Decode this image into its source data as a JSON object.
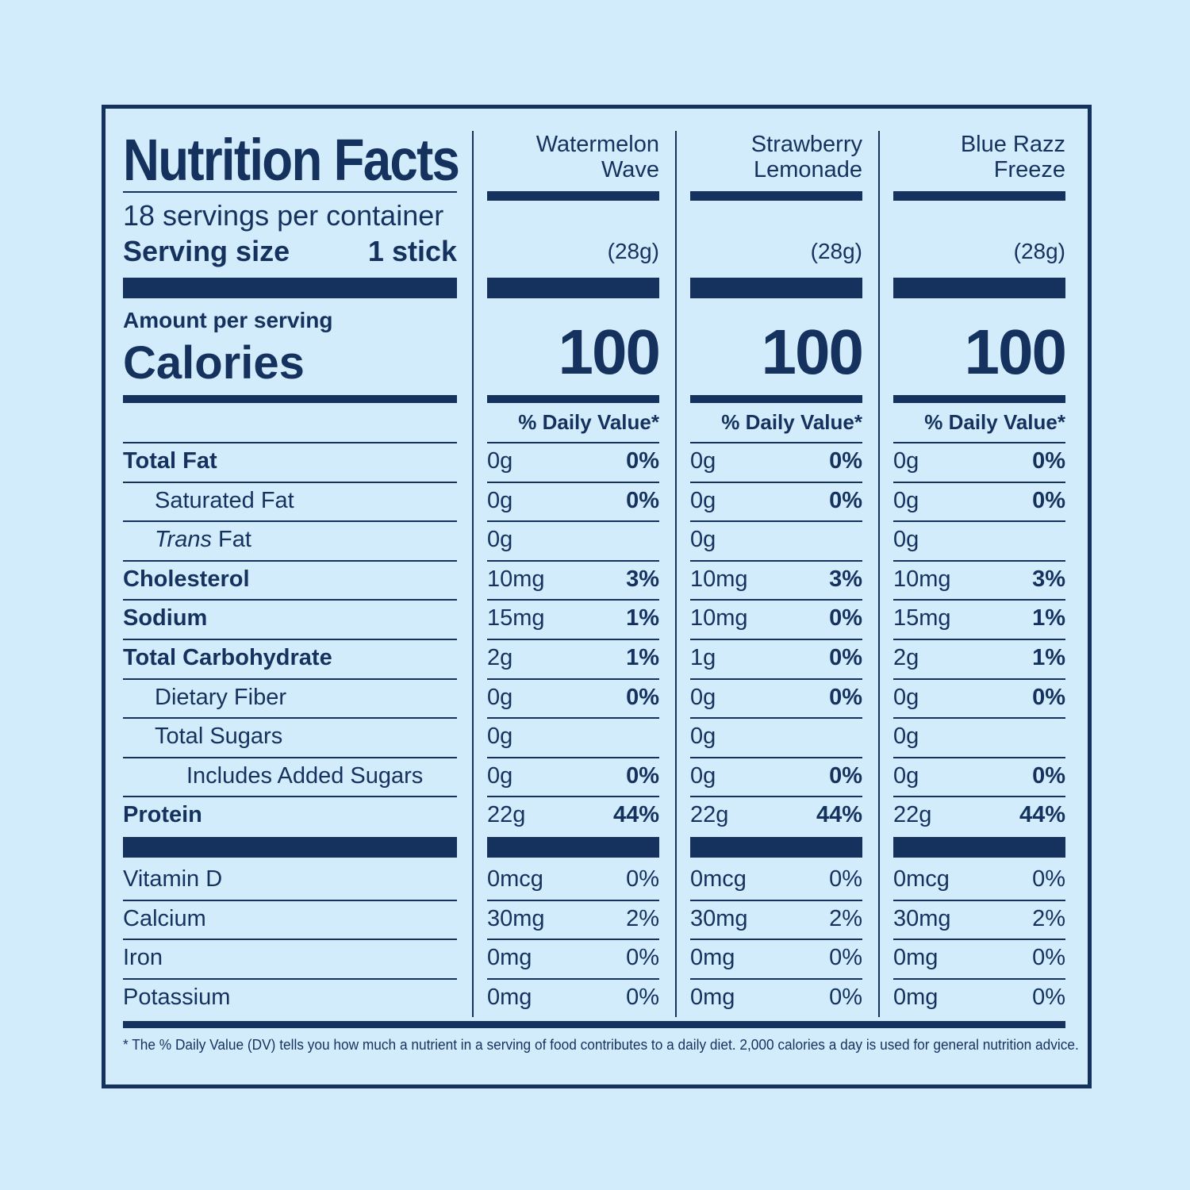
{
  "label": {
    "title": "Nutrition Facts",
    "servings_per_container": "18 servings per container",
    "serving_size_label": "Serving size",
    "serving_size_value": "1 stick",
    "amount_per_serving": "Amount per serving",
    "calories_label": "Calories",
    "daily_value_header": "% Daily Value*",
    "footnote": "* The % Daily Value (DV) tells you how much a nutrient in a serving of food contributes to a daily diet. 2,000 calories a day is used for general nutrition advice."
  },
  "flavors": [
    {
      "name": "Watermelon\nWave",
      "weight": "(28g)",
      "calories": "100",
      "dv_header": "% Daily Value*",
      "rows": [
        {
          "amt": "0g",
          "dv": "0%"
        },
        {
          "amt": "0g",
          "dv": "0%"
        },
        {
          "amt": "0g",
          "dv": ""
        },
        {
          "amt": "10mg",
          "dv": "3%"
        },
        {
          "amt": "15mg",
          "dv": "1%"
        },
        {
          "amt": "2g",
          "dv": "1%"
        },
        {
          "amt": "0g",
          "dv": "0%"
        },
        {
          "amt": "0g",
          "dv": ""
        },
        {
          "amt": "0g",
          "dv": "0%"
        },
        {
          "amt": "22g",
          "dv": "44%"
        }
      ],
      "vitamins": [
        {
          "amt": "0mcg",
          "dv": "0%"
        },
        {
          "amt": "30mg",
          "dv": "2%"
        },
        {
          "amt": "0mg",
          "dv": "0%"
        },
        {
          "amt": "0mg",
          "dv": "0%"
        }
      ]
    },
    {
      "name": "Strawberry\nLemonade",
      "weight": "(28g)",
      "calories": "100",
      "dv_header": "% Daily Value*",
      "rows": [
        {
          "amt": "0g",
          "dv": "0%"
        },
        {
          "amt": "0g",
          "dv": "0%"
        },
        {
          "amt": "0g",
          "dv": ""
        },
        {
          "amt": "10mg",
          "dv": "3%"
        },
        {
          "amt": "10mg",
          "dv": "0%"
        },
        {
          "amt": "1g",
          "dv": "0%"
        },
        {
          "amt": "0g",
          "dv": "0%"
        },
        {
          "amt": "0g",
          "dv": ""
        },
        {
          "amt": "0g",
          "dv": "0%"
        },
        {
          "amt": "22g",
          "dv": "44%"
        }
      ],
      "vitamins": [
        {
          "amt": "0mcg",
          "dv": "0%"
        },
        {
          "amt": "30mg",
          "dv": "2%"
        },
        {
          "amt": "0mg",
          "dv": "0%"
        },
        {
          "amt": "0mg",
          "dv": "0%"
        }
      ]
    },
    {
      "name": "Blue Razz\nFreeze",
      "weight": "(28g)",
      "calories": "100",
      "dv_header": "% Daily Value*",
      "rows": [
        {
          "amt": "0g",
          "dv": "0%"
        },
        {
          "amt": "0g",
          "dv": "0%"
        },
        {
          "amt": "0g",
          "dv": ""
        },
        {
          "amt": "10mg",
          "dv": "3%"
        },
        {
          "amt": "15mg",
          "dv": "1%"
        },
        {
          "amt": "2g",
          "dv": "1%"
        },
        {
          "amt": "0g",
          "dv": "0%"
        },
        {
          "amt": "0g",
          "dv": ""
        },
        {
          "amt": "0g",
          "dv": "0%"
        },
        {
          "amt": "22g",
          "dv": "44%"
        }
      ],
      "vitamins": [
        {
          "amt": "0mcg",
          "dv": "0%"
        },
        {
          "amt": "30mg",
          "dv": "2%"
        },
        {
          "amt": "0mg",
          "dv": "0%"
        },
        {
          "amt": "0mg",
          "dv": "0%"
        }
      ]
    }
  ],
  "nutrients": [
    {
      "label": "Total Fat",
      "bold": true,
      "indent": 0
    },
    {
      "label": "Saturated Fat",
      "bold": false,
      "indent": 1
    },
    {
      "label_italic": "Trans",
      "label": " Fat",
      "bold": false,
      "indent": 1
    },
    {
      "label": "Cholesterol",
      "bold": true,
      "indent": 0
    },
    {
      "label": "Sodium",
      "bold": true,
      "indent": 0
    },
    {
      "label": "Total Carbohydrate",
      "bold": true,
      "indent": 0
    },
    {
      "label": "Dietary Fiber",
      "bold": false,
      "indent": 1
    },
    {
      "label": "Total Sugars",
      "bold": false,
      "indent": 1
    },
    {
      "label": "Includes Added Sugars",
      "bold": false,
      "indent": 2
    },
    {
      "label": "Protein",
      "bold": true,
      "indent": 0
    }
  ],
  "vitamins": [
    {
      "label": "Vitamin D"
    },
    {
      "label": "Calcium"
    },
    {
      "label": "Iron"
    },
    {
      "label": "Potassium"
    }
  ],
  "colors": {
    "background": "#d3ecfc",
    "ink": "#15325f"
  }
}
